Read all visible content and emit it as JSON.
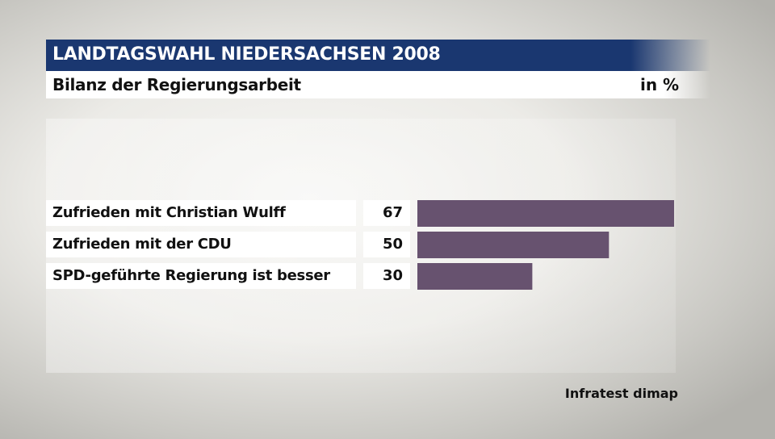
{
  "header": {
    "title": "LANDTAGSWAHL NIEDERSACHSEN 2008"
  },
  "subtitle": "Bilanz der Regierungsarbeit",
  "unit": "in %",
  "source": "Infratest dimap",
  "colors": {
    "bar": "#67526f",
    "header": "#1a3770"
  },
  "chart_data": {
    "type": "bar",
    "orientation": "horizontal",
    "categories": [
      "Zufrieden mit Christian Wulff",
      "Zufrieden mit der CDU",
      "SPD-geführte Regierung ist besser"
    ],
    "values": [
      67,
      50,
      30
    ],
    "value_labels": [
      "67",
      "50",
      "30"
    ],
    "title": "Bilanz der Regierungsarbeit",
    "unit": "in %",
    "xlim": [
      0,
      67
    ],
    "grid": false,
    "legend": "none"
  }
}
